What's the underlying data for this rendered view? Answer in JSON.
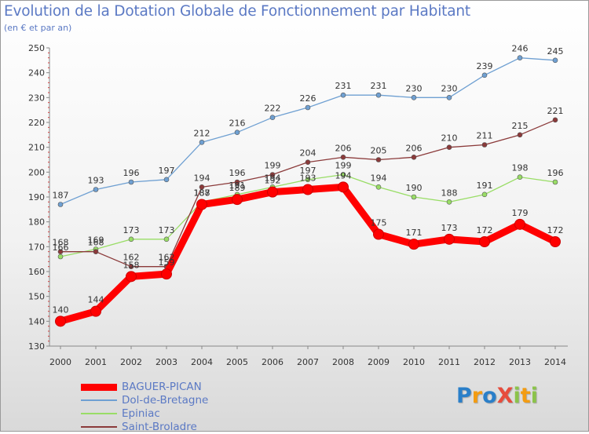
{
  "title": "Evolution de la Dotation Globale de Fonctionnement par Habitant",
  "subtitle": "(en € et par an)",
  "logo": {
    "text": "ProXiti",
    "letters": [
      "P",
      "r",
      "o",
      "X",
      "i",
      "t",
      "i"
    ],
    "colors": [
      "#2a7fc9",
      "#f39c12",
      "#2a7fc9",
      "#e74c3c",
      "#8bc34a",
      "#f39c12",
      "#8bc34a"
    ]
  },
  "chart_data": {
    "type": "line",
    "title": "Evolution de la Dotation Globale de Fonctionnement par Habitant",
    "subtitle": "(en € et par an)",
    "xlabel": "",
    "ylabel": "",
    "x": [
      "2000",
      "2001",
      "2002",
      "2003",
      "2004",
      "2005",
      "2006",
      "2007",
      "2008",
      "2009",
      "2010",
      "2011",
      "2012",
      "2013",
      "2014"
    ],
    "ylim": [
      130,
      250
    ],
    "yticks": [
      130,
      140,
      150,
      160,
      170,
      180,
      190,
      200,
      210,
      220,
      230,
      240,
      250
    ],
    "grid": false,
    "legend_position": "bottom-left",
    "series": [
      {
        "name": "BAGUER-PICAN",
        "color": "#ff0000",
        "values": [
          140,
          144,
          158,
          159,
          187,
          189,
          192,
          193,
          194,
          175,
          171,
          173,
          172,
          179,
          172
        ]
      },
      {
        "name": "Dol-de-Bretagne",
        "color": "#6fa0d2",
        "values": [
          187,
          193,
          196,
          197,
          212,
          216,
          222,
          226,
          231,
          231,
          230,
          230,
          239,
          246,
          245
        ]
      },
      {
        "name": "Epiniac",
        "color": "#99dd66",
        "values": [
          166,
          169,
          173,
          173,
          188,
          191,
          194,
          197,
          199,
          194,
          190,
          188,
          191,
          198,
          196
        ]
      },
      {
        "name": "Saint-Broladre",
        "color": "#8b3a3a",
        "values": [
          168,
          168,
          162,
          162,
          194,
          196,
          199,
          204,
          206,
          205,
          206,
          210,
          211,
          215,
          221
        ]
      }
    ]
  }
}
